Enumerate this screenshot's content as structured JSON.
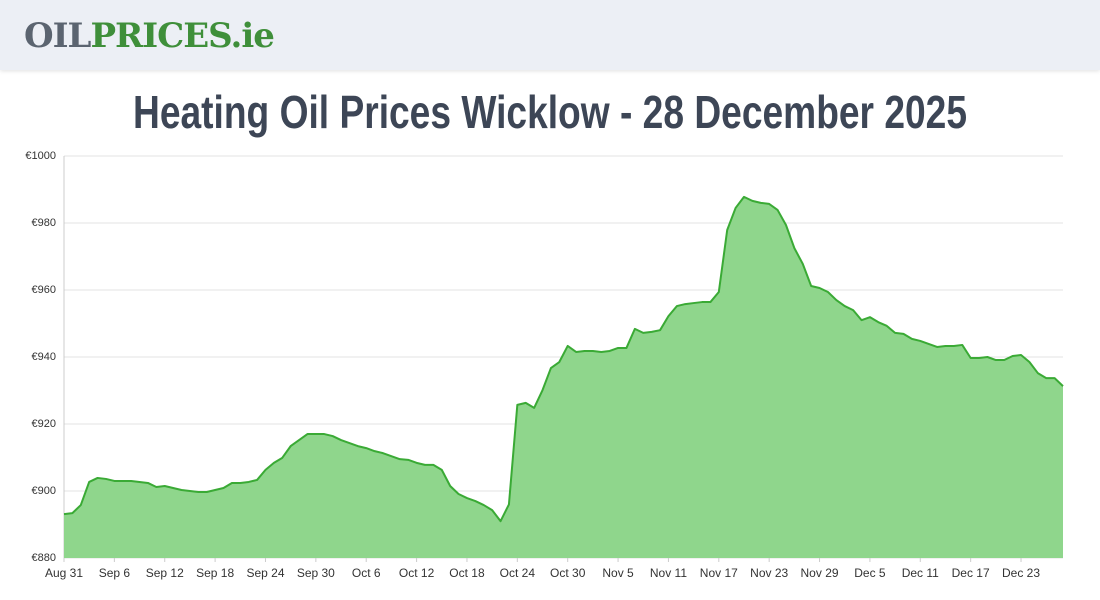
{
  "header": {
    "logo": [
      "OIL",
      "PRICES",
      ".ie"
    ]
  },
  "chart_data": {
    "type": "area",
    "title": "Heating Oil Prices Wicklow - 28 December 2025",
    "categories": [
      "Aug 31",
      null,
      null,
      null,
      null,
      null,
      "Sep 6",
      null,
      null,
      null,
      null,
      null,
      "Sep 12",
      null,
      null,
      null,
      null,
      null,
      "Sep 18",
      null,
      null,
      null,
      null,
      null,
      "Sep 24",
      null,
      null,
      null,
      null,
      null,
      "Sep 30",
      null,
      null,
      null,
      null,
      null,
      "Oct 6",
      null,
      null,
      null,
      null,
      null,
      "Oct 12",
      null,
      null,
      null,
      null,
      null,
      "Oct 18",
      null,
      null,
      null,
      null,
      null,
      "Oct 24",
      null,
      null,
      null,
      null,
      null,
      "Oct 30",
      null,
      null,
      null,
      null,
      null,
      "Nov 5",
      null,
      null,
      null,
      null,
      null,
      "Nov 11",
      null,
      null,
      null,
      null,
      null,
      "Nov 17",
      null,
      null,
      null,
      null,
      null,
      "Nov 23",
      null,
      null,
      null,
      null,
      null,
      "Nov 29",
      null,
      null,
      null,
      null,
      null,
      "Dec 5",
      null,
      null,
      null,
      null,
      null,
      "Dec 11",
      null,
      null,
      null,
      null,
      null,
      "Dec 17",
      null,
      null,
      null,
      null,
      null,
      "Dec 23",
      null,
      null,
      null,
      null,
      null
    ],
    "values": [
      893.1,
      893.4,
      895.8,
      902.7,
      903.9,
      903.6,
      903,
      903,
      903,
      902.7,
      902.4,
      901.2,
      901.5,
      900.9,
      900.3,
      900,
      899.7,
      899.7,
      900.3,
      900.9,
      902.4,
      902.4,
      902.7,
      903.3,
      906.3,
      908.4,
      909.9,
      913.4,
      915.2,
      917,
      917,
      917,
      916.4,
      915.2,
      914.3,
      913.4,
      912.8,
      911.9,
      911.3,
      910.4,
      909.5,
      909.3,
      908.4,
      907.8,
      907.8,
      906.3,
      901.5,
      899.1,
      897.9,
      897,
      895.8,
      894.3,
      891,
      896,
      925.7,
      926.3,
      924.8,
      930.1,
      936.7,
      938.5,
      943.3,
      941.5,
      941.8,
      941.8,
      941.5,
      941.8,
      942.7,
      942.7,
      948.4,
      947.2,
      947.5,
      948,
      952.2,
      955.2,
      955.8,
      956.1,
      956.4,
      956.4,
      959.4,
      977.9,
      984.5,
      987.8,
      986.6,
      986,
      985.7,
      983.9,
      979.4,
      972.5,
      967.8,
      961.2,
      960.6,
      959.4,
      957,
      955.2,
      954,
      951,
      951.9,
      950.4,
      949.3,
      947.2,
      946.9,
      945.4,
      944.8,
      943.9,
      943,
      943.3,
      943.3,
      943.6,
      939.7,
      939.7,
      940,
      939.1,
      939.1,
      940.3,
      940.6,
      938.5,
      935.2,
      933.7,
      933.7,
      931.3
    ],
    "color": "#3aaa35",
    "fill_color": "#8fd68c",
    "ylim": [
      880,
      1000
    ],
    "yticks": [
      {
        "value": 880,
        "label": "€880"
      },
      {
        "value": 900,
        "label": "€900"
      },
      {
        "value": 920,
        "label": "€920"
      },
      {
        "value": 940,
        "label": "€940"
      },
      {
        "value": 960,
        "label": "€960"
      },
      {
        "value": 980,
        "label": "€980"
      },
      {
        "value": 1000,
        "label": "€1000"
      }
    ],
    "grid": true
  }
}
